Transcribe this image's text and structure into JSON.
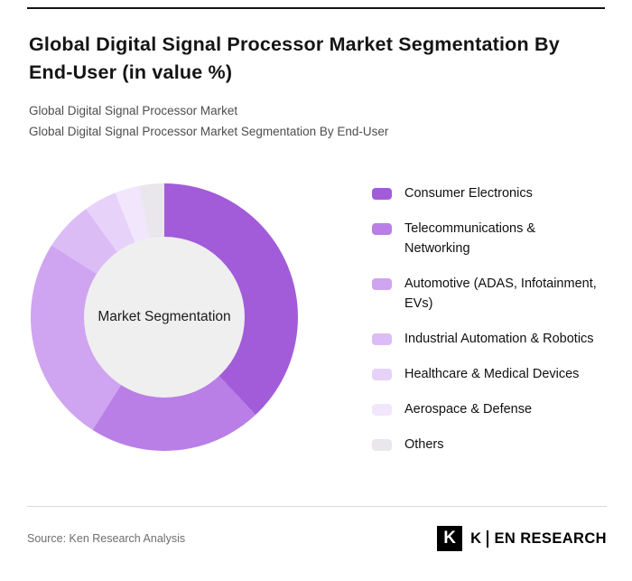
{
  "header": {
    "title": "Global Digital Signal Processor Market Segmentation By End-User (in value %)",
    "subtitle1": "Global Digital Signal Processor Market",
    "subtitle2": "Global Digital Signal Processor Market Segmentation By End-User"
  },
  "chart_data": {
    "type": "pie",
    "variant": "donut",
    "title": "Global Digital Signal Processor Market Segmentation By End-User (in value %)",
    "center_label": "Market Segmentation",
    "legend_position": "right",
    "start_angle_deg": 0,
    "direction": "clockwise",
    "categories": [
      "Consumer Electronics",
      "Telecommunications & Networking",
      "Automotive (ADAS, Infotainment, EVs)",
      "Industrial Automation & Robotics",
      "Healthcare & Medical Devices",
      "Aerospace & Defense",
      "Others"
    ],
    "values": [
      38,
      21,
      25,
      6,
      4,
      3,
      3
    ],
    "colors": [
      "#a25cd9",
      "#b97fe6",
      "#cfa4f0",
      "#dcbcf5",
      "#e7d2f9",
      "#f1e6fc",
      "#e9e7ec"
    ],
    "hole_color": "#efefef"
  },
  "footer": {
    "source": "Source: Ken Research Analysis",
    "logo_mark": "K",
    "logo_text_k": "K",
    "logo_text_rest": "EN RESEARCH"
  }
}
